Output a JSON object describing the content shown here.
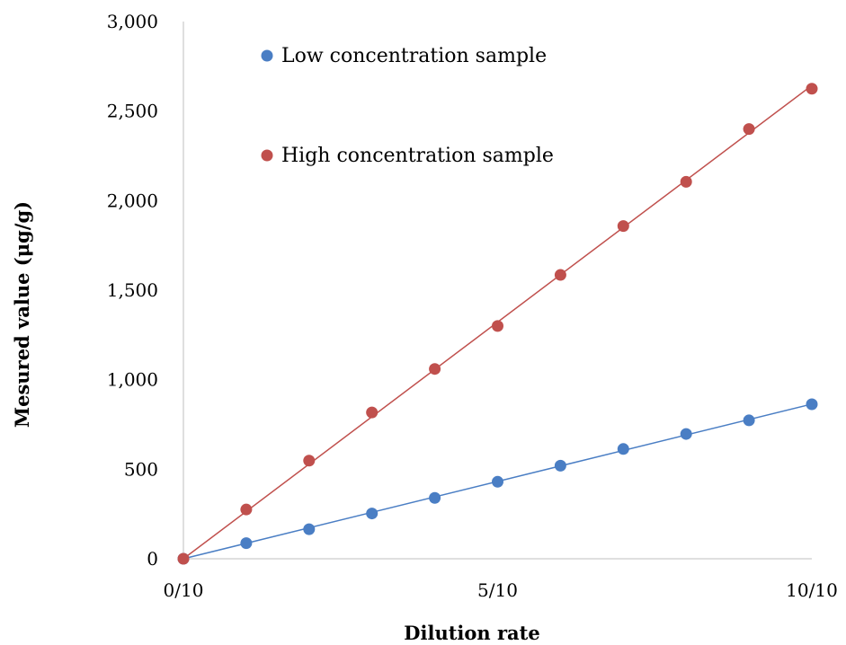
{
  "chart_data": {
    "type": "scatter",
    "title": "",
    "xlabel": "Dilution rate",
    "ylabel": "Mesured value (μg/g)",
    "x": [
      0,
      1,
      2,
      3,
      4,
      5,
      6,
      7,
      8,
      9,
      10
    ],
    "xlim": [
      0,
      10
    ],
    "ylim": [
      0,
      3000
    ],
    "x_ticks": [
      {
        "value": 0,
        "label": "0/10"
      },
      {
        "value": 5,
        "label": "5/10"
      },
      {
        "value": 10,
        "label": "10/10"
      }
    ],
    "y_ticks": [
      {
        "value": 0,
        "label": "0"
      },
      {
        "value": 500,
        "label": "500"
      },
      {
        "value": 1000,
        "label": "1,000"
      },
      {
        "value": 1500,
        "label": "1,500"
      },
      {
        "value": 2000,
        "label": "2,000"
      },
      {
        "value": 2500,
        "label": "2,500"
      },
      {
        "value": 3000,
        "label": "3,000"
      }
    ],
    "grid": false,
    "legend_position": "top-left",
    "series": [
      {
        "name": "Low concentration sample",
        "color": "#4a7ec4",
        "trendline": true,
        "values": [
          0,
          87,
          165,
          253,
          340,
          430,
          520,
          613,
          697,
          773,
          863
        ]
      },
      {
        "name": "High concentration sample",
        "color": "#c0504d",
        "trendline": true,
        "values": [
          0,
          275,
          548,
          817,
          1060,
          1300,
          1585,
          1858,
          2105,
          2400,
          2625
        ]
      }
    ]
  }
}
